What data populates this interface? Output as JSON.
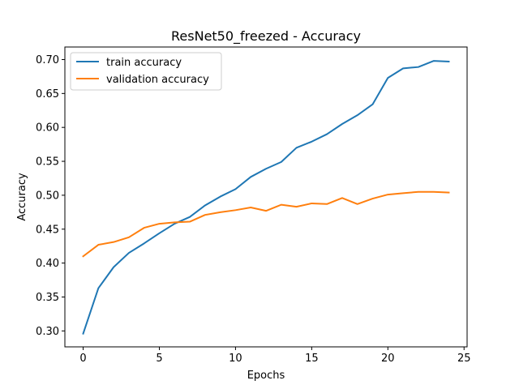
{
  "chart_data": {
    "type": "line",
    "title": "ResNet50_freezed - Accuracy",
    "xlabel": "Epochs",
    "ylabel": "Accuracy",
    "xlim": [
      -1.2,
      25.2
    ],
    "ylim": [
      0.2765,
      0.7185
    ],
    "xticks": [
      0,
      5,
      10,
      15,
      20,
      25
    ],
    "yticks": [
      0.3,
      0.35,
      0.4,
      0.45,
      0.5,
      0.55,
      0.6,
      0.65,
      0.7
    ],
    "xtick_labels": [
      "0",
      "5",
      "10",
      "15",
      "20",
      "25"
    ],
    "ytick_labels": [
      "0.30",
      "0.35",
      "0.40",
      "0.45",
      "0.50",
      "0.55",
      "0.60",
      "0.65",
      "0.70"
    ],
    "legend_position": "top-left",
    "grid": false,
    "x": [
      0,
      1,
      2,
      3,
      4,
      5,
      6,
      7,
      8,
      9,
      10,
      11,
      12,
      13,
      14,
      15,
      16,
      17,
      18,
      19,
      20,
      21,
      22,
      23,
      24
    ],
    "series": [
      {
        "name": "train accuracy",
        "color": "#1f77b4",
        "values": [
          0.296,
          0.363,
          0.394,
          0.415,
          0.429,
          0.444,
          0.458,
          0.468,
          0.485,
          0.498,
          0.509,
          0.527,
          0.539,
          0.549,
          0.57,
          0.579,
          0.59,
          0.605,
          0.618,
          0.634,
          0.673,
          0.687,
          0.689,
          0.698,
          0.697
        ]
      },
      {
        "name": "validation accuracy",
        "color": "#ff7f0e",
        "values": [
          0.41,
          0.427,
          0.431,
          0.438,
          0.452,
          0.458,
          0.46,
          0.461,
          0.471,
          0.475,
          0.478,
          0.482,
          0.477,
          0.486,
          0.483,
          0.488,
          0.487,
          0.496,
          0.487,
          0.495,
          0.501,
          0.503,
          0.505,
          0.505,
          0.504
        ]
      }
    ]
  }
}
